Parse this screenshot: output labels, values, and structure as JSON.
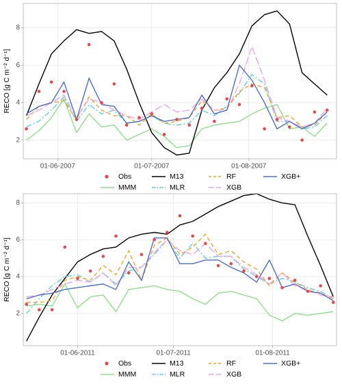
{
  "chart_data": [
    {
      "type": "line",
      "ylabel": "RECO [g C m⁻² d⁻¹]",
      "x": [
        "2007-05-22",
        "2007-05-26",
        "2007-05-30",
        "2007-06-03",
        "2007-06-07",
        "2007-06-11",
        "2007-06-15",
        "2007-06-19",
        "2007-06-23",
        "2007-06-27",
        "2007-07-01",
        "2007-07-05",
        "2007-07-09",
        "2007-07-13",
        "2007-07-17",
        "2007-07-21",
        "2007-07-25",
        "2007-07-29",
        "2007-08-02",
        "2007-08-06",
        "2007-08-10",
        "2007-08-14",
        "2007-08-18",
        "2007-08-22",
        "2007-08-26"
      ],
      "xlim": [
        "2007-05-21",
        "2007-08-29"
      ],
      "xticks": [
        {
          "value": "2007-06-01",
          "label": "01-06-2007"
        },
        {
          "value": "2007-07-01",
          "label": "01-07-2007"
        },
        {
          "value": "2007-08-01",
          "label": "01-08-2007"
        }
      ],
      "ylim": [
        1.0,
        9.3
      ],
      "yticks": [
        2,
        4,
        6,
        8
      ],
      "grid": true,
      "legend": "bottom",
      "series": [
        {
          "name": "Obs",
          "color": "#e8474a",
          "style": "points",
          "values": [
            2.6,
            4.6,
            5.1,
            4.6,
            3.1,
            7.1,
            4.0,
            5.0,
            2.8,
            3.2,
            3.4,
            2.3,
            3.1,
            2.8,
            3.7,
            3.0,
            4.2,
            3.9,
            4.9,
            2.6,
            3.1,
            2.7,
            2.0,
            3.5,
            3.6
          ]
        },
        {
          "name": "MMM",
          "color": "#8fe08a",
          "style": "solid",
          "values": [
            2.0,
            2.5,
            3.2,
            4.2,
            2.4,
            3.4,
            2.7,
            2.8,
            2.0,
            2.3,
            2.6,
            2.2,
            1.6,
            1.7,
            2.6,
            2.8,
            2.9,
            3.0,
            3.4,
            3.7,
            3.9,
            2.6,
            2.7,
            2.2,
            2.9
          ]
        },
        {
          "name": "M13",
          "color": "#000000",
          "style": "solid",
          "values": [
            3.3,
            5.0,
            6.6,
            7.3,
            7.9,
            7.7,
            7.8,
            7.3,
            5.8,
            4.0,
            2.4,
            1.6,
            1.2,
            1.3,
            3.6,
            4.8,
            5.6,
            6.6,
            8.1,
            8.7,
            8.9,
            8.2,
            5.6,
            5.0,
            4.4
          ]
        },
        {
          "name": "MLR",
          "color": "#62cfe0",
          "style": "dotdash",
          "values": [
            2.7,
            3.0,
            3.6,
            4.3,
            3.0,
            3.9,
            3.4,
            3.6,
            2.9,
            3.0,
            3.3,
            2.9,
            2.8,
            2.9,
            3.6,
            3.3,
            3.8,
            4.5,
            5.5,
            5.0,
            3.0,
            3.0,
            2.6,
            2.7,
            3.3
          ]
        },
        {
          "name": "RF",
          "color": "#f5a51f",
          "style": "dashed",
          "values": [
            3.1,
            3.8,
            4.0,
            4.1,
            3.1,
            4.3,
            3.6,
            3.3,
            3.3,
            2.8,
            3.4,
            2.9,
            3.0,
            3.2,
            4.1,
            3.6,
            3.7,
            4.6,
            5.0,
            4.8,
            3.2,
            3.3,
            2.7,
            2.8,
            3.5
          ]
        },
        {
          "name": "XGB",
          "color": "#f0a2ea",
          "style": "longdash",
          "values": [
            3.3,
            3.6,
            4.0,
            4.4,
            3.2,
            4.2,
            4.0,
            3.6,
            3.3,
            3.1,
            3.5,
            3.9,
            3.5,
            3.6,
            4.2,
            3.6,
            3.6,
            5.0,
            7.0,
            5.2,
            3.2,
            3.0,
            2.7,
            2.9,
            3.7
          ]
        },
        {
          "name": "XGB+",
          "color": "#4a6ed2",
          "style": "solid",
          "values": [
            3.4,
            3.8,
            4.0,
            5.1,
            3.1,
            5.3,
            3.9,
            3.8,
            2.9,
            3.0,
            3.3,
            3.0,
            3.1,
            3.2,
            4.4,
            3.4,
            3.6,
            6.0,
            5.2,
            4.0,
            2.6,
            3.0,
            2.6,
            2.9,
            3.5
          ]
        }
      ]
    },
    {
      "type": "line",
      "ylabel": "RECO [g C m⁻² d⁻¹]",
      "x": [
        "2011-05-16",
        "2011-05-20",
        "2011-05-24",
        "2011-05-28",
        "2011-06-01",
        "2011-06-05",
        "2011-06-09",
        "2011-06-13",
        "2011-06-17",
        "2011-06-21",
        "2011-06-25",
        "2011-06-29",
        "2011-07-03",
        "2011-07-07",
        "2011-07-11",
        "2011-07-15",
        "2011-07-19",
        "2011-07-23",
        "2011-07-27",
        "2011-07-31",
        "2011-08-04",
        "2011-08-08",
        "2011-08-12",
        "2011-08-16",
        "2011-08-20"
      ],
      "xlim": [
        "2011-05-15",
        "2011-08-21"
      ],
      "xticks": [
        {
          "value": "2011-06-01",
          "label": "01-06-2011"
        },
        {
          "value": "2011-07-01",
          "label": "01-07-2011"
        },
        {
          "value": "2011-08-01",
          "label": "01-08-2011"
        }
      ],
      "ylim": [
        0.25,
        8.5
      ],
      "yticks": [
        2,
        4,
        6,
        8
      ],
      "grid": true,
      "legend": "bottom",
      "series": [
        {
          "name": "Obs",
          "color": "#e8474a",
          "style": "points",
          "values": [
            2.5,
            2.2,
            2.2,
            5.6,
            3.9,
            4.3,
            5.1,
            6.2,
            4.2,
            5.2,
            6.0,
            6.4,
            7.3,
            6.2,
            5.8,
            4.6,
            4.7,
            4.3,
            4.0,
            3.9,
            3.4,
            3.8,
            3.2,
            3.5,
            2.6
          ]
        },
        {
          "name": "MMM",
          "color": "#8fe08a",
          "style": "solid",
          "values": [
            2.4,
            2.5,
            2.4,
            3.6,
            2.3,
            2.9,
            3.0,
            2.1,
            3.3,
            3.4,
            3.5,
            3.3,
            3.2,
            2.8,
            2.5,
            3.1,
            3.2,
            3.0,
            2.8,
            1.9,
            1.6,
            2.0,
            1.9,
            2.0,
            2.1
          ]
        },
        {
          "name": "M13",
          "color": "#000000",
          "style": "solid",
          "values": [
            0.5,
            1.8,
            3.0,
            3.9,
            4.8,
            5.2,
            5.5,
            5.6,
            6.1,
            6.3,
            6.4,
            6.3,
            6.8,
            7.0,
            7.4,
            7.8,
            8.1,
            8.4,
            8.5,
            8.2,
            8.0,
            7.9,
            6.2,
            4.6,
            2.9
          ]
        },
        {
          "name": "MLR",
          "color": "#62cfe0",
          "style": "dotdash",
          "values": [
            2.0,
            2.8,
            3.5,
            4.0,
            4.1,
            3.7,
            4.2,
            3.6,
            4.3,
            4.5,
            5.2,
            6.0,
            5.0,
            5.8,
            5.0,
            5.1,
            5.1,
            4.4,
            4.0,
            3.6,
            3.9,
            3.7,
            3.4,
            3.2,
            2.8
          ]
        },
        {
          "name": "RF",
          "color": "#f5a51f",
          "style": "dashed",
          "values": [
            2.6,
            2.6,
            2.7,
            3.8,
            4.0,
            3.8,
            4.6,
            4.1,
            5.4,
            3.8,
            5.7,
            6.1,
            5.2,
            5.6,
            6.3,
            5.2,
            5.4,
            4.8,
            4.4,
            3.5,
            4.2,
            3.7,
            3.3,
            3.1,
            2.8
          ]
        },
        {
          "name": "XGB",
          "color": "#f0a2ea",
          "style": "longdash",
          "values": [
            2.9,
            3.0,
            3.3,
            3.6,
            3.8,
            3.7,
            4.2,
            3.5,
            4.5,
            4.5,
            5.3,
            6.0,
            5.4,
            5.2,
            5.8,
            5.1,
            5.1,
            4.5,
            4.1,
            3.6,
            4.2,
            3.5,
            3.3,
            3.0,
            2.9
          ]
        },
        {
          "name": "XGB+",
          "color": "#4a6ed2",
          "style": "solid",
          "values": [
            2.8,
            3.0,
            3.1,
            3.3,
            3.4,
            3.5,
            3.6,
            3.3,
            4.8,
            3.8,
            6.1,
            6.1,
            4.7,
            4.7,
            4.9,
            4.9,
            4.5,
            4.2,
            3.7,
            4.9,
            3.4,
            3.6,
            3.2,
            3.1,
            2.7
          ]
        }
      ]
    }
  ]
}
